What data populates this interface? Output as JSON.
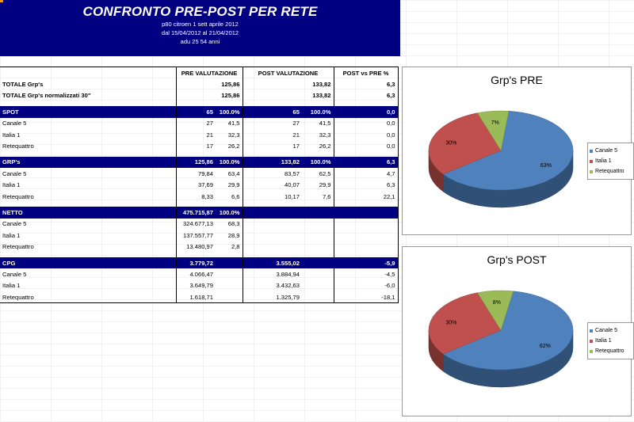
{
  "header": {
    "title": "CONFRONTO PRE-POST PER RETE",
    "line1": "p80 citroen 1 sett aprile 2012",
    "line2": "dal 15/04/2012 al 21/04/2012",
    "line3": "adu 25 54 anni"
  },
  "columns": {
    "pre": "PRE VALUTAZIONE",
    "post": "POST VALUTAZIONE",
    "delta": "POST vs PRE %"
  },
  "totals": [
    {
      "label": "TOTALE Grp's",
      "pre": "125,86",
      "post": "133,82",
      "delta": "6,3"
    },
    {
      "label": "TOTALE Grp's normalizzati 30\"",
      "pre": "125,86",
      "post": "133,82",
      "delta": "6,3"
    }
  ],
  "sections": [
    {
      "name": "SPOT",
      "pre": "65",
      "pre_pct": "100.0%",
      "post": "65",
      "post_pct": "100.0%",
      "delta": "0,0",
      "rows": [
        {
          "label": "Canale 5",
          "pre": "27",
          "pre_pct": "41,5",
          "post": "27",
          "post_pct": "41,5",
          "delta": "0,0"
        },
        {
          "label": "Italia 1",
          "pre": "21",
          "pre_pct": "32,3",
          "post": "21",
          "post_pct": "32,3",
          "delta": "0,0"
        },
        {
          "label": "Retequattro",
          "pre": "17",
          "pre_pct": "26,2",
          "post": "17",
          "post_pct": "26,2",
          "delta": "0,0"
        }
      ]
    },
    {
      "name": "GRP's",
      "pre": "125,86",
      "pre_pct": "100.0%",
      "post": "133,82",
      "post_pct": "100.0%",
      "delta": "6,3",
      "rows": [
        {
          "label": "Canale 5",
          "pre": "79,84",
          "pre_pct": "63,4",
          "post": "83,57",
          "post_pct": "62,5",
          "delta": "4,7"
        },
        {
          "label": "Italia 1",
          "pre": "37,69",
          "pre_pct": "29,9",
          "post": "40,07",
          "post_pct": "29,9",
          "delta": "6,3"
        },
        {
          "label": "Retequattro",
          "pre": "8,33",
          "pre_pct": "6,6",
          "post": "10,17",
          "post_pct": "7,6",
          "delta": "22,1"
        }
      ]
    },
    {
      "name": "NETTO",
      "pre": "475.715,87",
      "pre_pct": "100.0%",
      "post": "",
      "post_pct": "",
      "delta": "",
      "rows": [
        {
          "label": "Canale 5",
          "pre": "324.677,13",
          "pre_pct": "68,3",
          "post": "",
          "post_pct": "",
          "delta": ""
        },
        {
          "label": "Italia 1",
          "pre": "137.557,77",
          "pre_pct": "28,9",
          "post": "",
          "post_pct": "",
          "delta": ""
        },
        {
          "label": "Retequattro",
          "pre": "13.480,97",
          "pre_pct": "2,8",
          "post": "",
          "post_pct": "",
          "delta": ""
        }
      ]
    },
    {
      "name": "CPG",
      "pre": "3.779,72",
      "pre_pct": "",
      "post": "3.555,02",
      "post_pct": "",
      "delta": "-5,9",
      "rows": [
        {
          "label": "Canale 5",
          "pre": "4.066,47",
          "pre_pct": "",
          "post": "3.884,94",
          "post_pct": "",
          "delta": "-4,5"
        },
        {
          "label": "Italia 1",
          "pre": "3.649,79",
          "pre_pct": "",
          "post": "3.432,63",
          "post_pct": "",
          "delta": "-6,0"
        },
        {
          "label": "Retequattro",
          "pre": "1.618,71",
          "pre_pct": "",
          "post": "1.325,79",
          "post_pct": "",
          "delta": "-18,1"
        }
      ]
    }
  ],
  "chart_data": [
    {
      "type": "pie",
      "title": "Grp's PRE",
      "categories": [
        "Canale 5",
        "Italia 1",
        "Retequattro"
      ],
      "values": [
        63,
        30,
        7
      ],
      "labels": [
        "63%",
        "30%",
        "7%"
      ],
      "colors": [
        "#4f81bd",
        "#c0504d",
        "#9bbb59"
      ],
      "legend": "right"
    },
    {
      "type": "pie",
      "title": "Grp's POST",
      "categories": [
        "Canale 5",
        "Italia 1",
        "Retequattro"
      ],
      "values": [
        62,
        30,
        8
      ],
      "labels": [
        "62%",
        "30%",
        "8%"
      ],
      "colors": [
        "#4f81bd",
        "#c0504d",
        "#9bbb59"
      ],
      "legend": "right"
    }
  ]
}
